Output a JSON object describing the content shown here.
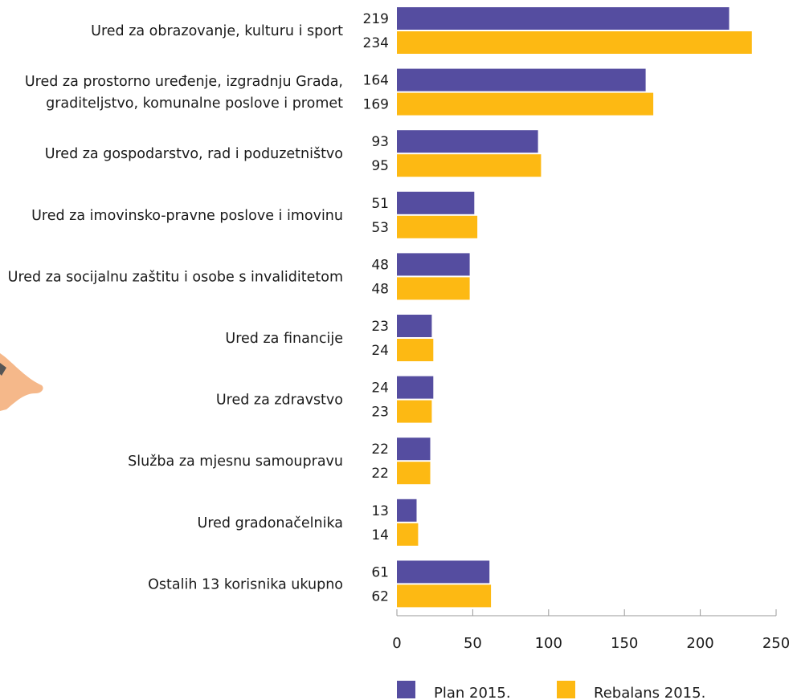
{
  "colors": {
    "plan": "#554DA0",
    "rebalans": "#FDB913",
    "axis": "#999999",
    "decor": "#F5B88A"
  },
  "chart_data": {
    "type": "bar",
    "orientation": "horizontal",
    "categories": [
      [
        "Ured za obrazovanje, kulturu i sport"
      ],
      [
        "Ured za prostorno uređenje, izgradnju Grada,",
        "graditeljstvo, komunalne poslove i promet"
      ],
      [
        "Ured za gospodarstvo, rad i poduzetništvo"
      ],
      [
        "Ured za imovinsko-pravne poslove i imovinu"
      ],
      [
        "Ured za socijalnu zaštitu i osobe s invaliditetom"
      ],
      [
        "Ured za financije"
      ],
      [
        "Ured za zdravstvo"
      ],
      [
        "Služba za mjesnu samoupravu"
      ],
      [
        "Ured gradonačelnika"
      ],
      [
        "Ostalih 13 korisnika ukupno"
      ]
    ],
    "series": [
      {
        "name": "Plan 2015.",
        "values": [
          219,
          164,
          93,
          51,
          48,
          23,
          24,
          22,
          13,
          61
        ]
      },
      {
        "name": "Rebalans 2015.",
        "values": [
          234,
          169,
          95,
          53,
          48,
          24,
          23,
          22,
          14,
          62
        ]
      }
    ],
    "xlim": [
      0,
      250
    ],
    "xticks": [
      0,
      50,
      100,
      150,
      200,
      250
    ],
    "grid": false,
    "legend_position": "bottom"
  }
}
